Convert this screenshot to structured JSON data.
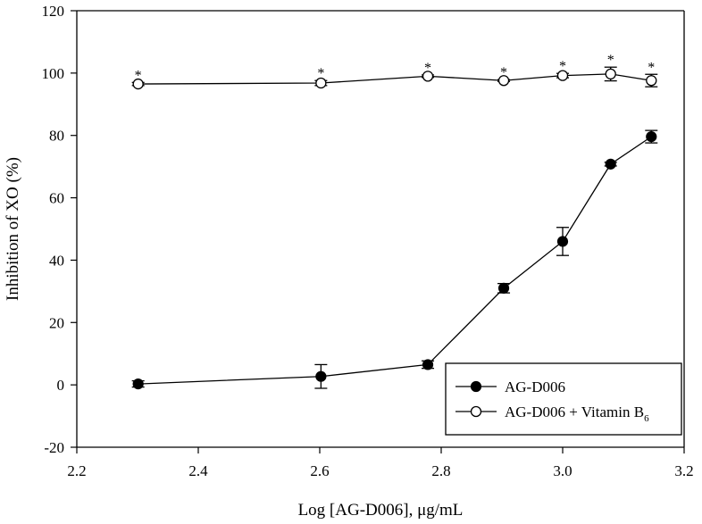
{
  "chart_data": {
    "type": "scatter",
    "title": "",
    "xlabel": "Log [AG-D006], μg/mL",
    "ylabel": "Inhibition of XO (%)",
    "xlim": [
      2.2,
      3.2
    ],
    "ylim": [
      -20,
      120
    ],
    "x_ticks": [
      "2.2",
      "2.4",
      "2.6",
      "2.8",
      "3.0",
      "3.2"
    ],
    "y_ticks": [
      "-20",
      "0",
      "20",
      "40",
      "60",
      "80",
      "100",
      "120"
    ],
    "grid": false,
    "legend_position": "bottom-right",
    "series": [
      {
        "name": "AG-D006",
        "marker": "filled-circle",
        "points": [
          {
            "x": 2.301,
            "y": 0.3,
            "err": 1.0
          },
          {
            "x": 2.602,
            "y": 2.7,
            "err": 3.8
          },
          {
            "x": 2.778,
            "y": 6.5,
            "err": 1.2
          },
          {
            "x": 2.903,
            "y": 31.0,
            "err": 1.5
          },
          {
            "x": 3.0,
            "y": 46.0,
            "err": 4.5
          },
          {
            "x": 3.079,
            "y": 70.8,
            "err": 0.6
          },
          {
            "x": 3.146,
            "y": 79.6,
            "err": 2.0
          }
        ]
      },
      {
        "name": "AG-D006 + Vitamin B",
        "name_subscript": "6",
        "marker": "open-circle",
        "points": [
          {
            "x": 2.301,
            "y": 96.5,
            "err": 0.5,
            "star": "*"
          },
          {
            "x": 2.602,
            "y": 96.8,
            "err": 0.8,
            "star": "*"
          },
          {
            "x": 2.778,
            "y": 99.0,
            "err": 0.4,
            "star": "*"
          },
          {
            "x": 2.903,
            "y": 97.6,
            "err": 0.3,
            "star": "*"
          },
          {
            "x": 3.0,
            "y": 99.2,
            "err": 0.7,
            "star": "*"
          },
          {
            "x": 3.079,
            "y": 99.7,
            "err": 2.2,
            "star": "*"
          },
          {
            "x": 3.146,
            "y": 97.6,
            "err": 2.0,
            "star": "*"
          }
        ]
      }
    ]
  }
}
